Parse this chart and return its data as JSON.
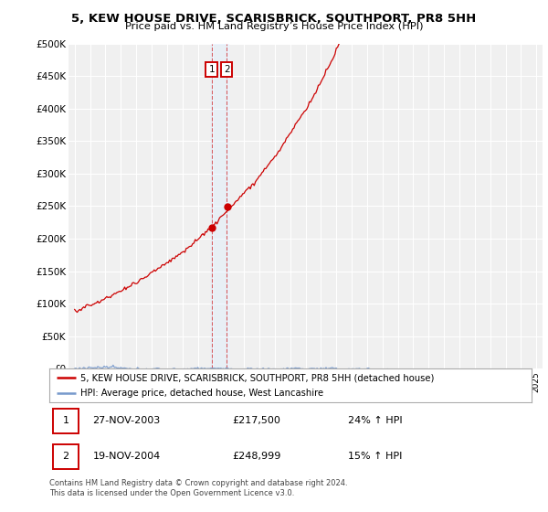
{
  "title": "5, KEW HOUSE DRIVE, SCARISBRICK, SOUTHPORT, PR8 5HH",
  "subtitle": "Price paid vs. HM Land Registry’s House Price Index (HPI)",
  "red_label": "5, KEW HOUSE DRIVE, SCARISBRICK, SOUTHPORT, PR8 5HH (detached house)",
  "blue_label": "HPI: Average price, detached house, West Lancashire",
  "sale1_date": "27-NOV-2003",
  "sale1_price": "£217,500",
  "sale1_hpi": "24% ↑ HPI",
  "sale2_date": "19-NOV-2004",
  "sale2_price": "£248,999",
  "sale2_hpi": "15% ↑ HPI",
  "footer": "Contains HM Land Registry data © Crown copyright and database right 2024.\nThis data is licensed under the Open Government Licence v3.0.",
  "ylim": [
    0,
    500000
  ],
  "yticks": [
    0,
    50000,
    100000,
    150000,
    200000,
    250000,
    300000,
    350000,
    400000,
    450000,
    500000
  ],
  "ytick_labels": [
    "£0",
    "£50K",
    "£100K",
    "£150K",
    "£200K",
    "£250K",
    "£300K",
    "£350K",
    "£400K",
    "£450K",
    "£500K"
  ],
  "start_year": 1995,
  "end_year": 2025,
  "sale1_year": 2003.9,
  "sale2_year": 2004.88,
  "sale1_value": 217500,
  "sale2_value": 248999,
  "bg_color": "#ffffff",
  "plot_bg": "#f0f0f0",
  "red_color": "#cc0000",
  "blue_color": "#7799cc",
  "sale_box_color": "#cc0000",
  "highlight_fill": "#ddeeff",
  "grid_color": "#ffffff"
}
